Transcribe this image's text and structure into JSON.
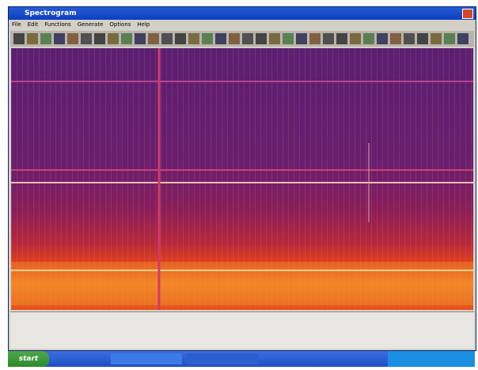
{
  "window": {
    "title": "Spectrogram"
  },
  "menu": [
    "File",
    "Edit",
    "Functions",
    "Generate",
    "Options",
    "Help"
  ],
  "taskbar": {
    "start": "start"
  }
}
